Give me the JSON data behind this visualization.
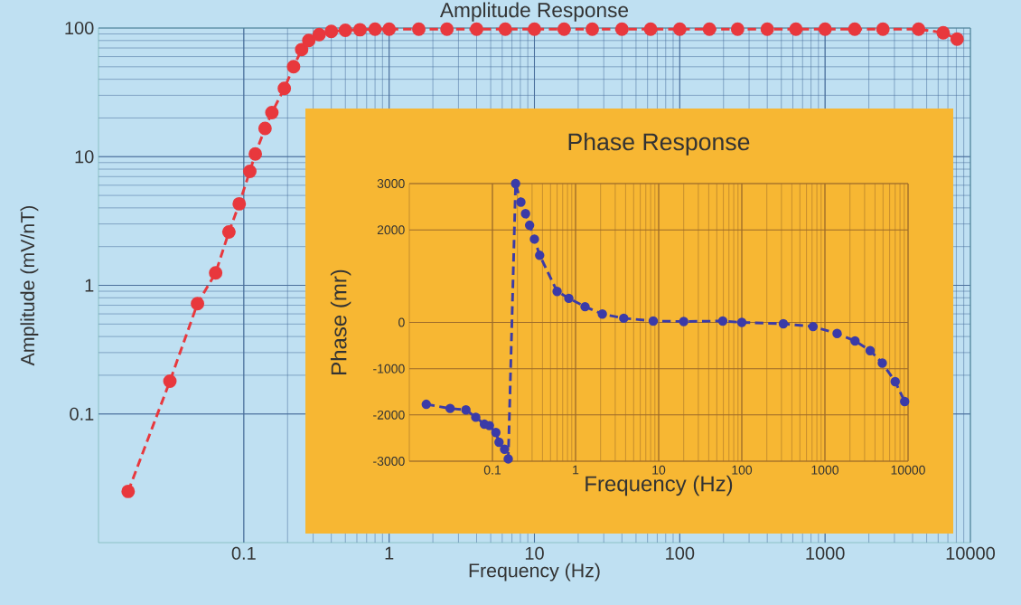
{
  "chart_data": [
    {
      "type": "line",
      "title": "Amplitude Response",
      "xlabel": "Frequency (Hz)",
      "ylabel": "Amplitude (mV/nT)",
      "x": [
        0.016,
        0.031,
        0.048,
        0.064,
        0.079,
        0.093,
        0.11,
        0.12,
        0.14,
        0.156,
        0.19,
        0.22,
        0.25,
        0.28,
        0.33,
        0.4,
        0.5,
        0.63,
        0.8,
        1,
        1.6,
        2.5,
        4,
        6.3,
        10,
        16,
        25,
        40,
        63,
        100,
        160,
        250,
        400,
        630,
        1000,
        1600,
        2500,
        4400,
        6500,
        8100
      ],
      "series": [
        {
          "color": "#e8383d",
          "values": [
            0.025,
            0.18,
            0.72,
            1.25,
            2.6,
            4.3,
            7.7,
            10.5,
            16.6,
            22,
            34,
            50,
            68,
            80,
            89,
            94,
            96,
            97,
            98,
            98,
            98,
            98,
            98,
            98,
            98,
            98,
            98,
            98,
            98,
            98,
            98,
            98,
            98,
            98,
            98,
            98,
            98,
            98,
            92,
            82
          ]
        }
      ],
      "xlim": [
        0.01,
        10000
      ],
      "ylim": [
        0.01,
        100
      ],
      "xticks": [
        0.1,
        1,
        10,
        100,
        1000,
        10000
      ],
      "yticks": [
        0.1,
        1,
        10,
        100
      ],
      "log": "xy",
      "grid": true,
      "marker": "circle",
      "line_style": "dashed"
    },
    {
      "type": "line",
      "title": "Phase Response",
      "xlabel": "Frequency (Hz)",
      "ylabel": "Phase (mr)",
      "x": [
        0.016,
        0.031,
        0.048,
        0.063,
        0.08,
        0.092,
        0.11,
        0.12,
        0.14,
        0.155,
        0.19,
        0.22,
        0.25,
        0.28,
        0.32,
        0.37,
        0.6,
        0.83,
        1.3,
        2.1,
        3.8,
        8.6,
        20,
        59,
        100,
        316,
        720,
        1400,
        2300,
        3500,
        4900,
        7000,
        9100
      ],
      "series": [
        {
          "color": "#3b3ba8",
          "values": [
            -1770,
            -1860,
            -1890,
            -2050,
            -2200,
            -2230,
            -2380,
            -2590,
            -2740,
            -2950,
            3000,
            2600,
            2350,
            2100,
            1800,
            1450,
            670,
            520,
            340,
            180,
            90,
            30,
            20,
            30,
            0,
            -30,
            -90,
            -240,
            -400,
            -610,
            -880,
            -1280,
            -1710
          ]
        }
      ],
      "xlim": [
        0.01,
        10000
      ],
      "ylim": [
        -3000,
        3000
      ],
      "xticks": [
        0.1,
        1,
        10,
        100,
        1000,
        10000
      ],
      "yticks": [
        -3000,
        -2000,
        -1000,
        0,
        2000,
        3000
      ],
      "log": "x",
      "grid": true,
      "marker": "circle",
      "line_style": "dashed"
    }
  ]
}
